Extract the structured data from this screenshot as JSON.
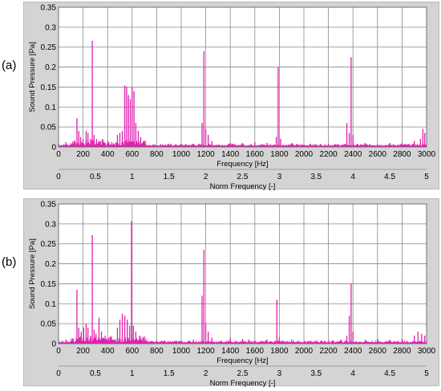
{
  "labels": {
    "a": "(a)",
    "b": "(b)"
  },
  "colors": {
    "series": "#e020b0",
    "plot_bg": "#ffffff",
    "panel_bg": "#d4d4d4",
    "grid": "#888888"
  },
  "chart_data": [
    {
      "type": "line",
      "panel": "(a)",
      "xlabel": "Frequency  [Hz]",
      "x2label": "Norm Frequency [-]",
      "ylabel": "Sound Pressure [Pa]",
      "xlim": [
        0,
        3000
      ],
      "ylim": [
        0,
        0.35
      ],
      "x2lim": [
        0,
        5
      ],
      "xticks": [
        0,
        200,
        400,
        600,
        800,
        1000,
        1200,
        1400,
        1600,
        1800,
        2000,
        2200,
        2400,
        2600,
        2800,
        3000
      ],
      "yticks": [
        0,
        0.05,
        0.1,
        0.15,
        0.2,
        0.25,
        0.3,
        0.35
      ],
      "x2ticks": [
        "0",
        "0.5",
        "1",
        "1.5",
        "2",
        "2.5",
        "3",
        "3.5",
        "4",
        "4.5",
        "5"
      ],
      "grid": true,
      "peaks": [
        {
          "x": 60,
          "y": 0.012
        },
        {
          "x": 130,
          "y": 0.015
        },
        {
          "x": 150,
          "y": 0.072
        },
        {
          "x": 165,
          "y": 0.04
        },
        {
          "x": 180,
          "y": 0.025
        },
        {
          "x": 200,
          "y": 0.02
        },
        {
          "x": 225,
          "y": 0.04
        },
        {
          "x": 240,
          "y": 0.035
        },
        {
          "x": 260,
          "y": 0.02
        },
        {
          "x": 275,
          "y": 0.266
        },
        {
          "x": 290,
          "y": 0.03
        },
        {
          "x": 310,
          "y": 0.02
        },
        {
          "x": 330,
          "y": 0.015
        },
        {
          "x": 360,
          "y": 0.02
        },
        {
          "x": 410,
          "y": 0.012
        },
        {
          "x": 480,
          "y": 0.03
        },
        {
          "x": 500,
          "y": 0.035
        },
        {
          "x": 520,
          "y": 0.04
        },
        {
          "x": 540,
          "y": 0.154
        },
        {
          "x": 555,
          "y": 0.15
        },
        {
          "x": 570,
          "y": 0.13
        },
        {
          "x": 585,
          "y": 0.12
        },
        {
          "x": 600,
          "y": 0.15
        },
        {
          "x": 615,
          "y": 0.14
        },
        {
          "x": 630,
          "y": 0.06
        },
        {
          "x": 650,
          "y": 0.04
        },
        {
          "x": 670,
          "y": 0.025
        },
        {
          "x": 700,
          "y": 0.015
        },
        {
          "x": 850,
          "y": 0.006
        },
        {
          "x": 1000,
          "y": 0.005
        },
        {
          "x": 1100,
          "y": 0.008
        },
        {
          "x": 1170,
          "y": 0.06
        },
        {
          "x": 1185,
          "y": 0.24
        },
        {
          "x": 1200,
          "y": 0.045
        },
        {
          "x": 1220,
          "y": 0.03
        },
        {
          "x": 1250,
          "y": 0.015
        },
        {
          "x": 1400,
          "y": 0.01
        },
        {
          "x": 1500,
          "y": 0.01
        },
        {
          "x": 1600,
          "y": 0.012
        },
        {
          "x": 1700,
          "y": 0.01
        },
        {
          "x": 1775,
          "y": 0.025
        },
        {
          "x": 1790,
          "y": 0.2
        },
        {
          "x": 1810,
          "y": 0.02
        },
        {
          "x": 1900,
          "y": 0.01
        },
        {
          "x": 2050,
          "y": 0.008
        },
        {
          "x": 2200,
          "y": 0.008
        },
        {
          "x": 2350,
          "y": 0.06
        },
        {
          "x": 2370,
          "y": 0.035
        },
        {
          "x": 2385,
          "y": 0.225
        },
        {
          "x": 2400,
          "y": 0.03
        },
        {
          "x": 2500,
          "y": 0.01
        },
        {
          "x": 2600,
          "y": 0.008
        },
        {
          "x": 2700,
          "y": 0.01
        },
        {
          "x": 2800,
          "y": 0.01
        },
        {
          "x": 2900,
          "y": 0.015
        },
        {
          "x": 2950,
          "y": 0.02
        },
        {
          "x": 2970,
          "y": 0.045
        },
        {
          "x": 2985,
          "y": 0.035
        }
      ]
    },
    {
      "type": "line",
      "panel": "(b)",
      "xlabel": "Frequency  [Hz]",
      "x2label": "Norm Frequency [-]",
      "ylabel": "Sound Pressure [Pa]",
      "xlim": [
        0,
        3000
      ],
      "ylim": [
        0,
        0.35
      ],
      "x2lim": [
        0,
        5
      ],
      "xticks": [
        0,
        200,
        400,
        600,
        800,
        1000,
        1200,
        1400,
        1600,
        1800,
        2000,
        2200,
        2400,
        2600,
        2800,
        3000
      ],
      "yticks": [
        0,
        0.05,
        0.1,
        0.15,
        0.2,
        0.25,
        0.3,
        0.35
      ],
      "x2ticks": [
        "0",
        "0.5",
        "1",
        "1.5",
        "2",
        "2.5",
        "3",
        "3.5",
        "4",
        "4.5",
        "5"
      ],
      "grid": true,
      "peaks": [
        {
          "x": 60,
          "y": 0.01
        },
        {
          "x": 120,
          "y": 0.012
        },
        {
          "x": 150,
          "y": 0.135
        },
        {
          "x": 165,
          "y": 0.04
        },
        {
          "x": 185,
          "y": 0.03
        },
        {
          "x": 205,
          "y": 0.04
        },
        {
          "x": 225,
          "y": 0.05
        },
        {
          "x": 240,
          "y": 0.04
        },
        {
          "x": 260,
          "y": 0.02
        },
        {
          "x": 275,
          "y": 0.272
        },
        {
          "x": 290,
          "y": 0.035
        },
        {
          "x": 305,
          "y": 0.025
        },
        {
          "x": 330,
          "y": 0.065
        },
        {
          "x": 350,
          "y": 0.03
        },
        {
          "x": 380,
          "y": 0.02
        },
        {
          "x": 410,
          "y": 0.015
        },
        {
          "x": 480,
          "y": 0.04
        },
        {
          "x": 500,
          "y": 0.06
        },
        {
          "x": 520,
          "y": 0.075
        },
        {
          "x": 540,
          "y": 0.07
        },
        {
          "x": 560,
          "y": 0.06
        },
        {
          "x": 580,
          "y": 0.045
        },
        {
          "x": 595,
          "y": 0.307
        },
        {
          "x": 610,
          "y": 0.045
        },
        {
          "x": 630,
          "y": 0.03
        },
        {
          "x": 660,
          "y": 0.02
        },
        {
          "x": 700,
          "y": 0.018
        },
        {
          "x": 800,
          "y": 0.005
        },
        {
          "x": 950,
          "y": 0.005
        },
        {
          "x": 1100,
          "y": 0.01
        },
        {
          "x": 1170,
          "y": 0.12
        },
        {
          "x": 1185,
          "y": 0.235
        },
        {
          "x": 1200,
          "y": 0.05
        },
        {
          "x": 1220,
          "y": 0.03
        },
        {
          "x": 1250,
          "y": 0.015
        },
        {
          "x": 1400,
          "y": 0.015
        },
        {
          "x": 1500,
          "y": 0.012
        },
        {
          "x": 1550,
          "y": 0.01
        },
        {
          "x": 1700,
          "y": 0.01
        },
        {
          "x": 1780,
          "y": 0.11
        },
        {
          "x": 1800,
          "y": 0.015
        },
        {
          "x": 1900,
          "y": 0.01
        },
        {
          "x": 2100,
          "y": 0.008
        },
        {
          "x": 2300,
          "y": 0.01
        },
        {
          "x": 2350,
          "y": 0.02
        },
        {
          "x": 2370,
          "y": 0.07
        },
        {
          "x": 2385,
          "y": 0.15
        },
        {
          "x": 2400,
          "y": 0.03
        },
        {
          "x": 2500,
          "y": 0.01
        },
        {
          "x": 2600,
          "y": 0.012
        },
        {
          "x": 2700,
          "y": 0.01
        },
        {
          "x": 2800,
          "y": 0.012
        },
        {
          "x": 2900,
          "y": 0.02
        },
        {
          "x": 2930,
          "y": 0.03
        },
        {
          "x": 2960,
          "y": 0.025
        },
        {
          "x": 2985,
          "y": 0.02
        }
      ]
    }
  ]
}
